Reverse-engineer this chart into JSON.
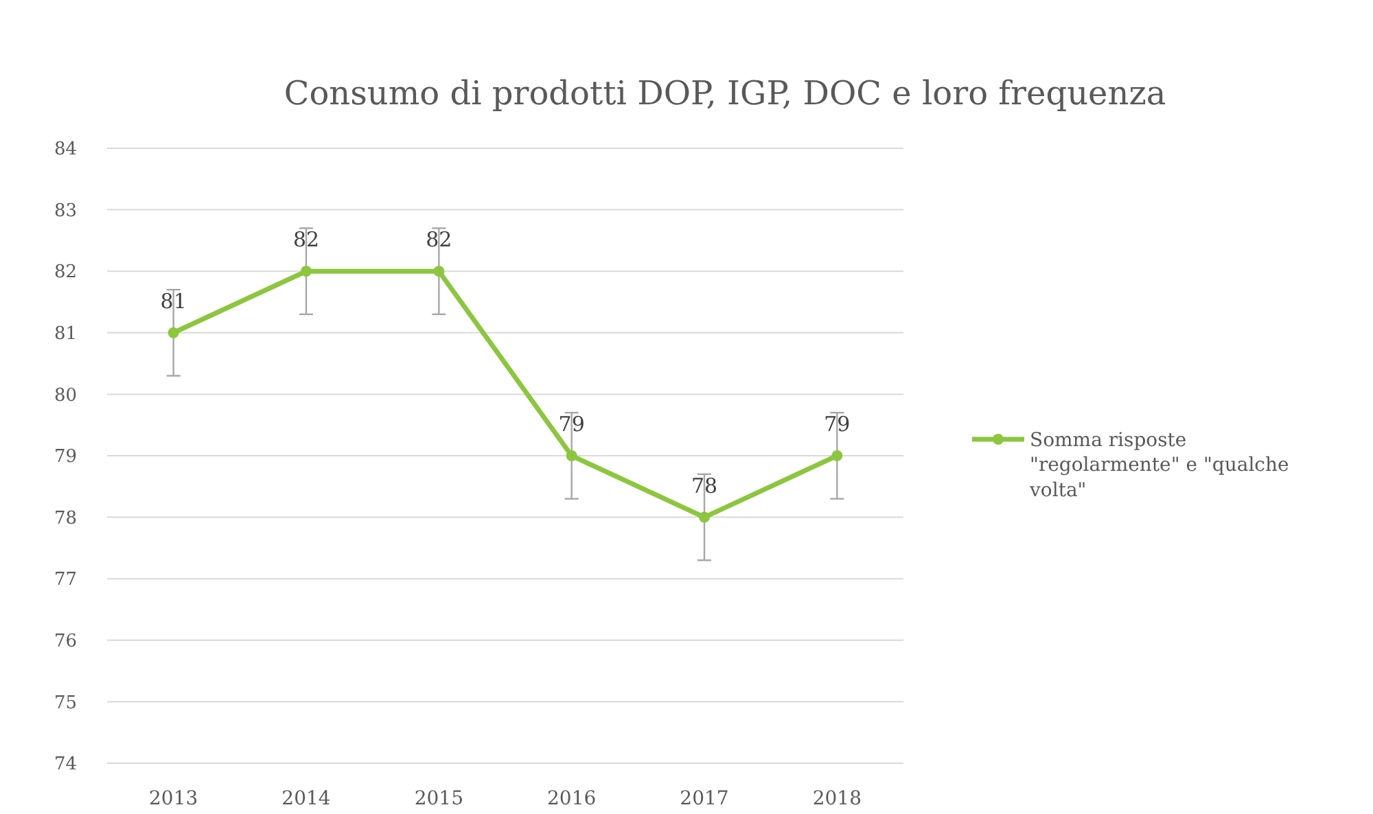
{
  "chart_data": {
    "type": "line",
    "title": "Consumo di prodotti DOP, IGP, DOC e loro frequenza",
    "categories": [
      "2013",
      "2014",
      "2015",
      "2016",
      "2017",
      "2018"
    ],
    "series": [
      {
        "name": "Somma risposte \"regolarmente\" e \"qualche volta\"",
        "color": "#8cc63f",
        "values": [
          81,
          82,
          82,
          79,
          78,
          79
        ],
        "errors": [
          0.7,
          0.7,
          0.7,
          0.7,
          0.7,
          0.7
        ]
      }
    ],
    "ylim": [
      74,
      84
    ],
    "yticks": [
      74,
      75,
      76,
      77,
      78,
      79,
      80,
      81,
      82,
      83,
      84
    ],
    "grid": "y",
    "legend": "right",
    "marker": "circle",
    "line_style": "solid",
    "data_labels": true
  }
}
